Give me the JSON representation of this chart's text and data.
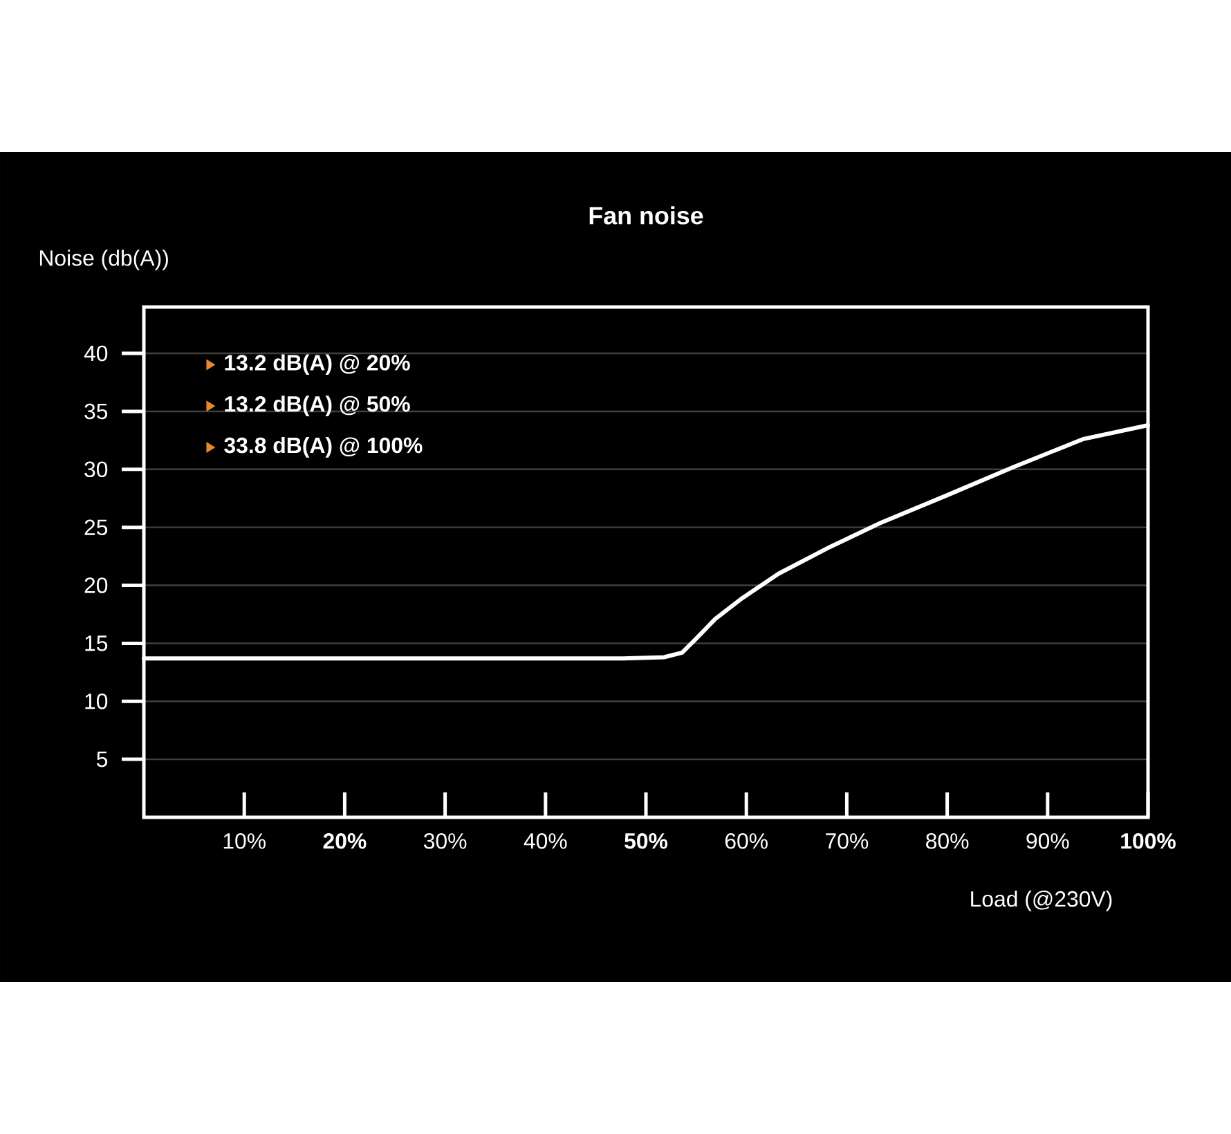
{
  "chart_data": {
    "type": "line",
    "title": "Fan noise",
    "xlabel": "Load (@230V)",
    "ylabel": "Noise (db(A))",
    "annotations": [
      "13.2 dB(A) @ 20%",
      "13.2 dB(A) @ 50%",
      "33.8 dB(A) @ 100%"
    ],
    "x": [
      0,
      47.7,
      51.8,
      53.6,
      55,
      56.9,
      59.6,
      63.2,
      68.3,
      73.4,
      79.8,
      86.6,
      93.5,
      100
    ],
    "series": [
      {
        "color": "#ffffff",
        "values": [
          13.7,
          13.7,
          13.8,
          14.2,
          15.4,
          17.1,
          18.9,
          21,
          23.3,
          25.4,
          27.7,
          30.2,
          32.6,
          33.8
        ]
      }
    ],
    "xlim": [
      0,
      100
    ],
    "ylim": [
      0,
      44
    ],
    "xticks": [
      {
        "value": 10,
        "label": "10%"
      },
      {
        "value": 20,
        "label": "**20%**"
      },
      {
        "value": 30,
        "label": "30%"
      },
      {
        "value": 40,
        "label": "40%"
      },
      {
        "value": 50,
        "label": "**50%**"
      },
      {
        "value": 60,
        "label": "60%"
      },
      {
        "value": 70,
        "label": "70%"
      },
      {
        "value": 80,
        "label": "80%"
      },
      {
        "value": 90,
        "label": "90%"
      },
      {
        "value": 100,
        "label": "**100%**"
      }
    ],
    "yticks": [
      5,
      10,
      15,
      20,
      25,
      30,
      35,
      40
    ],
    "grid": "y"
  }
}
